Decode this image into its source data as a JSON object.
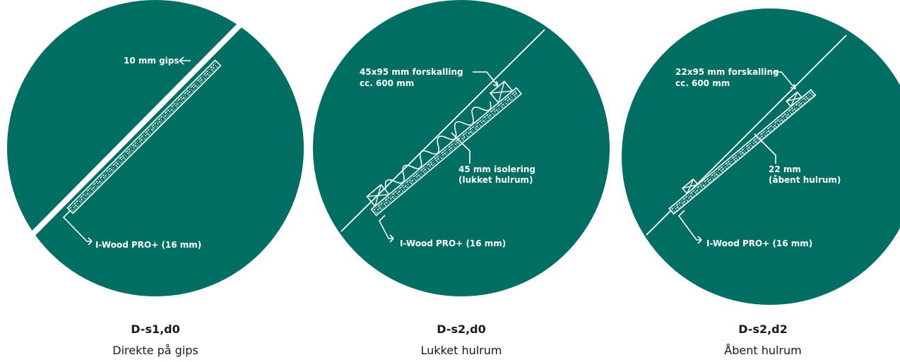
{
  "colors": {
    "circle": "#006e63",
    "line": "#ffffff",
    "text": "#1a1a1a"
  },
  "panels": [
    {
      "title": "D-s1,d0",
      "subtitle": "Direkte på gips",
      "labels": {
        "gips": "10 mm gips",
        "iwood": "I-Wood PRO+ (16 mm)"
      }
    },
    {
      "title": "D-s2,d0",
      "subtitle": "Lukket hulrum",
      "labels": {
        "forskalling_1": "45x95 mm forskalling",
        "forskalling_2": "cc. 600 mm",
        "isolering_1": "45 mm isolering",
        "isolering_2": "(lukket hulrum)",
        "iwood": "I-Wood PRO+ (16 mm)"
      }
    },
    {
      "title": "D-s2,d2",
      "subtitle": "Åbent hulrum",
      "labels": {
        "forskalling_1": "22x95 mm forskalling",
        "forskalling_2": "cc. 600 mm",
        "hulrum_1": "22 mm",
        "hulrum_2": "(åbent hulrum)",
        "iwood": "I-Wood PRO+ (16 mm)"
      }
    }
  ]
}
